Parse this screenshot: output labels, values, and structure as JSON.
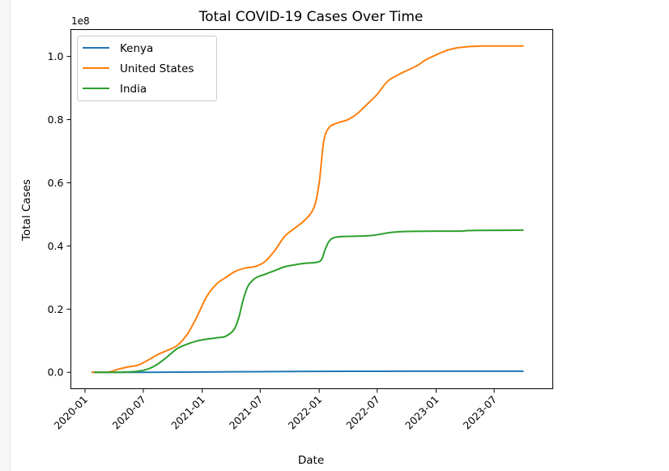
{
  "chart_data": {
    "type": "line",
    "title": "Total COVID-19 Cases Over Time",
    "xlabel": "Date",
    "ylabel": "Total Cases",
    "y_offset_label": "1e8",
    "x_ticks": [
      "2020-01",
      "2020-07",
      "2021-01",
      "2021-07",
      "2022-01",
      "2022-07",
      "2023-01",
      "2023-07"
    ],
    "y_ticks": [
      "0.0",
      "0.2",
      "0.4",
      "0.6",
      "0.8",
      "1.0"
    ],
    "xlim": [
      "2019-11-18",
      "2023-12-31"
    ],
    "ylim": [
      -5200000,
      108500000
    ],
    "grid": false,
    "legend_position": "top-left",
    "series": [
      {
        "name": "Kenya",
        "color": "#1f77b4",
        "points": [
          [
            "2020-01-22",
            0
          ],
          [
            "2020-07-01",
            7000
          ],
          [
            "2021-01-01",
            97000
          ],
          [
            "2021-07-01",
            190000
          ],
          [
            "2022-01-01",
            300000
          ],
          [
            "2022-07-01",
            333000
          ],
          [
            "2023-01-01",
            342000
          ],
          [
            "2023-07-01",
            343000
          ],
          [
            "2023-10-01",
            344000
          ]
        ]
      },
      {
        "name": "United States",
        "color": "#ff7f0e",
        "points": [
          [
            "2020-01-22",
            0
          ],
          [
            "2020-03-15",
            100000
          ],
          [
            "2020-04-15",
            1000000
          ],
          [
            "2020-05-15",
            1700000
          ],
          [
            "2020-06-15",
            2300000
          ],
          [
            "2020-07-15",
            3800000
          ],
          [
            "2020-08-15",
            5600000
          ],
          [
            "2020-09-15",
            7000000
          ],
          [
            "2020-10-15",
            8500000
          ],
          [
            "2020-11-15",
            12000000
          ],
          [
            "2020-12-15",
            17500000
          ],
          [
            "2021-01-15",
            24000000
          ],
          [
            "2021-02-15",
            28000000
          ],
          [
            "2021-03-15",
            30000000
          ],
          [
            "2021-04-15",
            32000000
          ],
          [
            "2021-05-15",
            33000000
          ],
          [
            "2021-06-15",
            33500000
          ],
          [
            "2021-07-15",
            35000000
          ],
          [
            "2021-08-15",
            38500000
          ],
          [
            "2021-09-15",
            43000000
          ],
          [
            "2021-10-15",
            45500000
          ],
          [
            "2021-11-15",
            48000000
          ],
          [
            "2021-12-15",
            52000000
          ],
          [
            "2022-01-01",
            60000000
          ],
          [
            "2022-01-15",
            73000000
          ],
          [
            "2022-02-01",
            77500000
          ],
          [
            "2022-03-01",
            79000000
          ],
          [
            "2022-04-01",
            80000000
          ],
          [
            "2022-05-01",
            82000000
          ],
          [
            "2022-06-01",
            85000000
          ],
          [
            "2022-07-01",
            88000000
          ],
          [
            "2022-08-01",
            92000000
          ],
          [
            "2022-09-01",
            94000000
          ],
          [
            "2022-10-01",
            95500000
          ],
          [
            "2022-11-01",
            97000000
          ],
          [
            "2022-12-01",
            99000000
          ],
          [
            "2023-01-01",
            100500000
          ],
          [
            "2023-02-01",
            101800000
          ],
          [
            "2023-03-01",
            102600000
          ],
          [
            "2023-04-01",
            103000000
          ],
          [
            "2023-05-01",
            103200000
          ],
          [
            "2023-06-01",
            103300000
          ],
          [
            "2023-10-01",
            103300000
          ]
        ]
      },
      {
        "name": "India",
        "color": "#2ca02c",
        "points": [
          [
            "2020-01-30",
            0
          ],
          [
            "2020-04-15",
            10000
          ],
          [
            "2020-05-15",
            100000
          ],
          [
            "2020-06-15",
            350000
          ],
          [
            "2020-07-15",
            1000000
          ],
          [
            "2020-08-15",
            2600000
          ],
          [
            "2020-09-15",
            5000000
          ],
          [
            "2020-10-15",
            7500000
          ],
          [
            "2020-11-15",
            8900000
          ],
          [
            "2020-12-15",
            9900000
          ],
          [
            "2021-01-15",
            10500000
          ],
          [
            "2021-02-15",
            10900000
          ],
          [
            "2021-03-15",
            11400000
          ],
          [
            "2021-04-10",
            13500000
          ],
          [
            "2021-04-25",
            17300000
          ],
          [
            "2021-05-05",
            21500000
          ],
          [
            "2021-05-15",
            25000000
          ],
          [
            "2021-05-25",
            27500000
          ],
          [
            "2021-06-10",
            29400000
          ],
          [
            "2021-06-25",
            30300000
          ],
          [
            "2021-07-15",
            31000000
          ],
          [
            "2021-08-15",
            32200000
          ],
          [
            "2021-09-15",
            33400000
          ],
          [
            "2021-10-15",
            34000000
          ],
          [
            "2021-11-15",
            34500000
          ],
          [
            "2021-12-15",
            34700000
          ],
          [
            "2021-12-31",
            35000000
          ],
          [
            "2022-01-10",
            36000000
          ],
          [
            "2022-01-20",
            39000000
          ],
          [
            "2022-02-01",
            41500000
          ],
          [
            "2022-02-15",
            42600000
          ],
          [
            "2022-03-15",
            43000000
          ],
          [
            "2022-05-01",
            43100000
          ],
          [
            "2022-06-15",
            43300000
          ],
          [
            "2022-07-15",
            43800000
          ],
          [
            "2022-08-15",
            44300000
          ],
          [
            "2022-10-01",
            44600000
          ],
          [
            "2023-01-01",
            44700000
          ],
          [
            "2023-03-15",
            44700000
          ],
          [
            "2023-05-01",
            44900000
          ],
          [
            "2023-10-01",
            45000000
          ]
        ]
      }
    ]
  }
}
